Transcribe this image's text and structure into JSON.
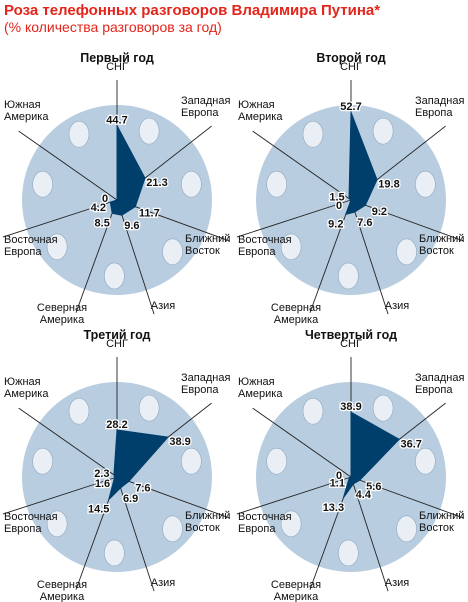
{
  "header": {
    "title": "Роза телефонных разговоров Владимира Путина*",
    "subtitle": "(% количества разговоров за год)"
  },
  "colors": {
    "dial": "#b9cde0",
    "holes": "#e9eff5",
    "polygon": "#003f6c",
    "spokes": "#222222",
    "title_red": "#e3251b"
  },
  "chart_data": [
    {
      "type": "radar",
      "title": "Первый год",
      "categories": [
        "СНГ",
        "Западная Европа",
        "Ближний Восток",
        "Азия",
        "Северная Америка",
        "Восточная Европа",
        "Южная Америка"
      ],
      "category_lines": [
        [
          "СНГ"
        ],
        [
          "Западная",
          "Европа"
        ],
        [
          "Ближний",
          "Восток"
        ],
        [
          "Азия"
        ],
        [
          "Северная",
          "Америка"
        ],
        [
          "Восточная",
          "Европа"
        ],
        [
          "Южная",
          "Америка"
        ]
      ],
      "values": [
        44.7,
        21.3,
        11.7,
        9.6,
        8.5,
        4.2,
        0
      ],
      "value_labels": [
        "44.7",
        "21.3",
        "11.7",
        "9.6",
        "8.5",
        "4.2",
        "0"
      ]
    },
    {
      "type": "radar",
      "title": "Второй год",
      "categories": [
        "СНГ",
        "Западная Европа",
        "Ближний Восток",
        "Азия",
        "Северная Америка",
        "Восточная Европа",
        "Южная Америка"
      ],
      "category_lines": [
        [
          "СНГ"
        ],
        [
          "Западная",
          "Европа"
        ],
        [
          "Ближний",
          "Восток"
        ],
        [
          "Азия"
        ],
        [
          "Северная",
          "Америка"
        ],
        [
          "Восточная",
          "Европа"
        ],
        [
          "Южная",
          "Америка"
        ]
      ],
      "values": [
        52.7,
        19.8,
        9.2,
        7.6,
        9.2,
        0,
        1.5
      ],
      "value_labels": [
        "52.7",
        "19.8",
        "9.2",
        "7.6",
        "9.2",
        "0",
        "1.5"
      ]
    },
    {
      "type": "radar",
      "title": "Третий год",
      "categories": [
        "СНГ",
        "Западная Европа",
        "Ближний Восток",
        "Азия",
        "Северная Америка",
        "Восточная Европа",
        "Южная Америка"
      ],
      "category_lines": [
        [
          "СНГ"
        ],
        [
          "Западная",
          "Европа"
        ],
        [
          "Ближний",
          "Восток"
        ],
        [
          "Азия"
        ],
        [
          "Северная",
          "Америка"
        ],
        [
          "Восточная",
          "Европа"
        ],
        [
          "Южная",
          "Америка"
        ]
      ],
      "values": [
        28.2,
        38.9,
        7.6,
        6.9,
        14.5,
        1.6,
        2.3
      ],
      "value_labels": [
        "28.2",
        "38.9",
        "7.6",
        "6.9",
        "14.5",
        "1.6",
        "2.3"
      ]
    },
    {
      "type": "radar",
      "title": "Четвертый год",
      "categories": [
        "СНГ",
        "Западная Европа",
        "Ближний Восток",
        "Азия",
        "Северная Америка",
        "Восточная Европа",
        "Южная Америка"
      ],
      "category_lines": [
        [
          "СНГ"
        ],
        [
          "Западная",
          "Европа"
        ],
        [
          "Ближний",
          "Восток"
        ],
        [
          "Азия"
        ],
        [
          "Северная",
          "Америка"
        ],
        [
          "Восточная",
          "Европа"
        ],
        [
          "Южная",
          "Америка"
        ]
      ],
      "values": [
        38.9,
        36.7,
        5.6,
        4.4,
        13.3,
        1.1,
        0
      ],
      "value_labels": [
        "38.9",
        "36.7",
        "5.6",
        "4.4",
        "13.3",
        "1.1",
        "0"
      ]
    }
  ]
}
